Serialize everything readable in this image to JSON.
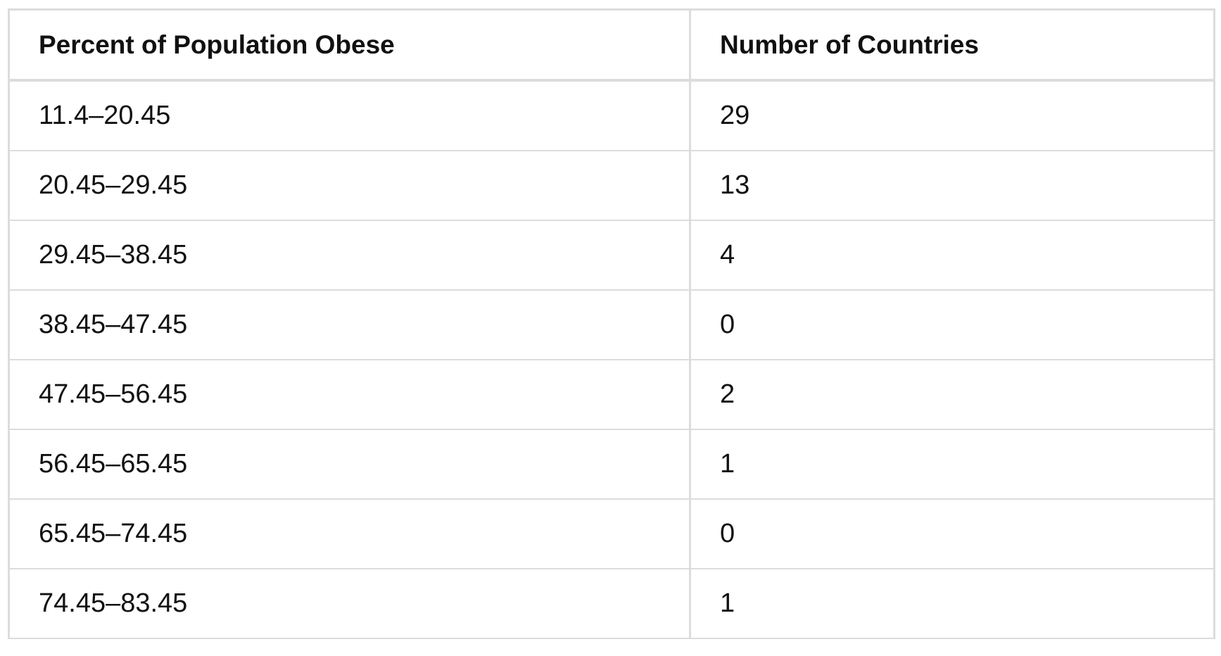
{
  "table": {
    "headers": [
      "Percent of Population Obese",
      "Number of Countries"
    ],
    "rows": [
      [
        "11.4–20.45",
        "29"
      ],
      [
        "20.45–29.45",
        "13"
      ],
      [
        "29.45–38.45",
        "4"
      ],
      [
        "38.45–47.45",
        "0"
      ],
      [
        "47.45–56.45",
        "2"
      ],
      [
        "56.45–65.45",
        "1"
      ],
      [
        "65.45–74.45",
        "0"
      ],
      [
        "74.45–83.45",
        "1"
      ]
    ]
  }
}
